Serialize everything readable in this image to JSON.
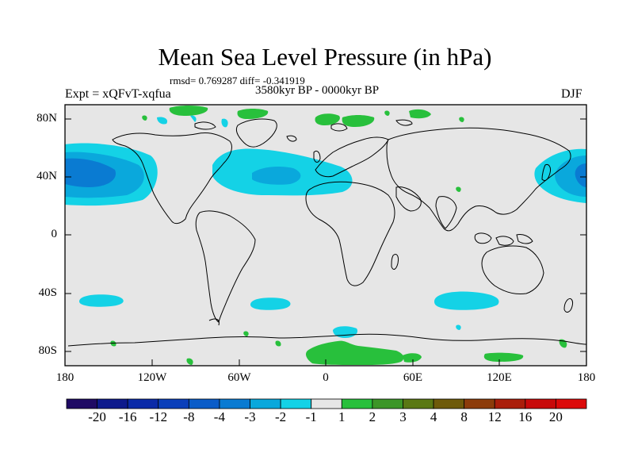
{
  "header": {
    "title": "Mean Sea Level Pressure (in hPa)",
    "stats": "rmsd= 0.769287 diff= -0.341919",
    "period": "3580kyr BP - 0000kyr BP",
    "experiment": "Expt = xQFvT-xqfua",
    "season": "DJF"
  },
  "axes": {
    "lat_labels": [
      "80N",
      "40N",
      "0",
      "40S",
      "80S"
    ],
    "lon_labels": [
      "180",
      "120W",
      "60W",
      "0",
      "60E",
      "120E",
      "180"
    ]
  },
  "colorbar": {
    "labels": [
      "-20",
      "-16",
      "-12",
      "-8",
      "-4",
      "-3",
      "-2",
      "-1",
      "1",
      "2",
      "3",
      "4",
      "8",
      "12",
      "16",
      "20"
    ],
    "colors": [
      "#1f0a64",
      "#0d1a8c",
      "#0a2aa8",
      "#0a3fba",
      "#0a5cc8",
      "#0a7bd2",
      "#0aa8dc",
      "#14d2e6",
      "#e6e6e6",
      "#28c03c",
      "#3c9628",
      "#5a7814",
      "#6e5a0a",
      "#8c3c0a",
      "#aa1e0a",
      "#c80a0a",
      "#dc0a0a"
    ]
  },
  "map": {
    "background_color": "#e6e6e6",
    "neg1_color": "#14d2e6",
    "neg2_color": "#0aa8dc",
    "neg3_color": "#0a7bd2",
    "pos1_color": "#28c03c"
  }
}
